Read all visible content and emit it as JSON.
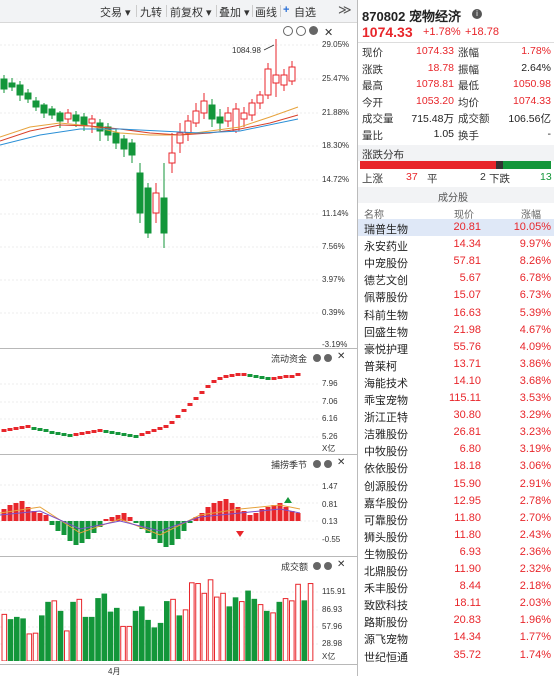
{
  "toolbar": {
    "items": [
      "交易 ▾",
      "九转",
      "前复权 ▾",
      "叠加 ▾",
      "画线",
      "自选"
    ],
    "more": "≫"
  },
  "kline": {
    "max_label": "1084.98",
    "y_ticks": [
      "29.05%",
      "25.47%",
      "21.88%",
      "18.30%",
      "14.72%",
      "11.14%",
      "7.56%",
      "3.97%",
      "0.39%",
      "-3.19%"
    ]
  },
  "fund_flow": {
    "title": "流动资金",
    "y_ticks": [
      "7.96",
      "7.06",
      "6.16",
      "5.26"
    ],
    "unit": "X亿"
  },
  "indicator": {
    "title": "捕捞季节",
    "y_ticks": [
      "1.47",
      "0.81",
      "0.13",
      "-0.55"
    ]
  },
  "volume": {
    "title": "成交额",
    "y_ticks": [
      "115.91",
      "86.93",
      "57.96",
      "28.98"
    ],
    "unit": "X亿",
    "month_label": "4月",
    "bars": [
      62,
      55,
      58,
      56,
      36,
      37,
      60,
      78,
      80,
      66,
      40,
      78,
      82,
      58,
      58,
      83,
      89,
      65,
      70,
      46,
      46,
      66,
      72,
      54,
      44,
      50,
      79,
      82,
      60,
      68,
      104,
      103,
      90,
      108,
      85,
      90,
      72,
      84,
      79,
      93,
      82,
      75,
      66,
      64,
      78,
      83,
      80,
      102,
      80,
      103
    ],
    "bar_up": [
      true,
      false,
      false,
      false,
      true,
      true,
      false,
      false,
      true,
      false,
      true,
      false,
      true,
      false,
      false,
      false,
      false,
      false,
      false,
      true,
      true,
      false,
      false,
      false,
      false,
      false,
      false,
      true,
      false,
      true,
      true,
      true,
      true,
      true,
      true,
      true,
      false,
      false,
      true,
      false,
      false,
      true,
      false,
      true,
      false,
      true,
      true,
      true,
      false,
      true
    ],
    "max": 125
  },
  "quote": {
    "code_name": "870802 宠物经济",
    "price": "1074.33",
    "change_pct": "+1.78%",
    "change": "+18.78",
    "fields": [
      {
        "l1": "现价",
        "v1": "1074.33",
        "c1": "red",
        "l2": "涨幅",
        "v2": "1.78%",
        "c2": "red"
      },
      {
        "l1": "涨跌",
        "v1": "18.78",
        "c1": "red",
        "l2": "振幅",
        "v2": "2.64%",
        "c2": "black"
      },
      {
        "l1": "最高",
        "v1": "1078.81",
        "c1": "red",
        "l2": "最低",
        "v2": "1050.98",
        "c2": "red"
      },
      {
        "l1": "今开",
        "v1": "1053.20",
        "c1": "red",
        "l2": "均价",
        "v2": "1074.33",
        "c2": "red"
      },
      {
        "l1": "成交量",
        "v1": "715.48万",
        "c1": "black",
        "l2": "成交额",
        "v2": "106.56亿",
        "c2": "black"
      },
      {
        "l1": "量比",
        "v1": "1.05",
        "c1": "black",
        "l2": "换手",
        "v2": "-",
        "c2": "black"
      }
    ]
  },
  "distribution": {
    "title": "涨跌分布",
    "up_label": "上涨",
    "up_count": "37",
    "flat_label": "平",
    "flat_count": "2",
    "down_label": "下跌",
    "down_count": "13",
    "colors": {
      "up": "#e8262b",
      "flat": "#333333",
      "down": "#13963a"
    },
    "up_ratio": 0.712,
    "flat_ratio": 0.038
  },
  "constituents": {
    "title": "成分股",
    "headers": [
      "名称",
      "现价",
      "涨幅"
    ],
    "rows": [
      {
        "name": "瑞普生物",
        "price": "20.81",
        "pct": "10.05%"
      },
      {
        "name": "永安药业",
        "price": "14.34",
        "pct": "9.97%"
      },
      {
        "name": "中宠股份",
        "price": "57.81",
        "pct": "8.26%"
      },
      {
        "name": "德艺文创",
        "price": "5.67",
        "pct": "6.78%"
      },
      {
        "name": "佩蒂股份",
        "price": "15.07",
        "pct": "6.73%"
      },
      {
        "name": "科前生物",
        "price": "16.63",
        "pct": "5.39%"
      },
      {
        "name": "回盛生物",
        "price": "21.98",
        "pct": "4.67%"
      },
      {
        "name": "豪悦护理",
        "price": "55.76",
        "pct": "4.09%"
      },
      {
        "name": "普莱柯",
        "price": "13.71",
        "pct": "3.86%"
      },
      {
        "name": "海能技术",
        "price": "14.10",
        "pct": "3.68%"
      },
      {
        "name": "乖宝宠物",
        "price": "115.11",
        "pct": "3.53%"
      },
      {
        "name": "浙江正特",
        "price": "30.80",
        "pct": "3.29%"
      },
      {
        "name": "洁雅股份",
        "price": "26.81",
        "pct": "3.23%"
      },
      {
        "name": "中牧股份",
        "price": "6.80",
        "pct": "3.19%"
      },
      {
        "name": "依依股份",
        "price": "18.18",
        "pct": "3.06%"
      },
      {
        "name": "创源股份",
        "price": "15.90",
        "pct": "2.91%"
      },
      {
        "name": "嘉华股份",
        "price": "12.95",
        "pct": "2.78%"
      },
      {
        "name": "可靠股份",
        "price": "11.80",
        "pct": "2.70%"
      },
      {
        "name": "狮头股份",
        "price": "11.80",
        "pct": "2.43%"
      },
      {
        "name": "生物股份",
        "price": "6.93",
        "pct": "2.36%"
      },
      {
        "name": "北鼎股份",
        "price": "11.90",
        "pct": "2.32%"
      },
      {
        "name": "禾丰股份",
        "price": "8.44",
        "pct": "2.18%"
      },
      {
        "name": "致欧科技",
        "price": "18.11",
        "pct": "2.03%"
      },
      {
        "name": "路斯股份",
        "price": "20.83",
        "pct": "1.96%"
      },
      {
        "name": "源飞宠物",
        "price": "14.34",
        "pct": "1.77%"
      },
      {
        "name": "世纪恒通",
        "price": "35.72",
        "pct": "1.74%"
      }
    ]
  },
  "colors": {
    "up": "#e8262b",
    "down": "#13963a",
    "ma1": "#e6a23c",
    "ma2": "#d9412b",
    "ma3": "#2a8fd6"
  }
}
